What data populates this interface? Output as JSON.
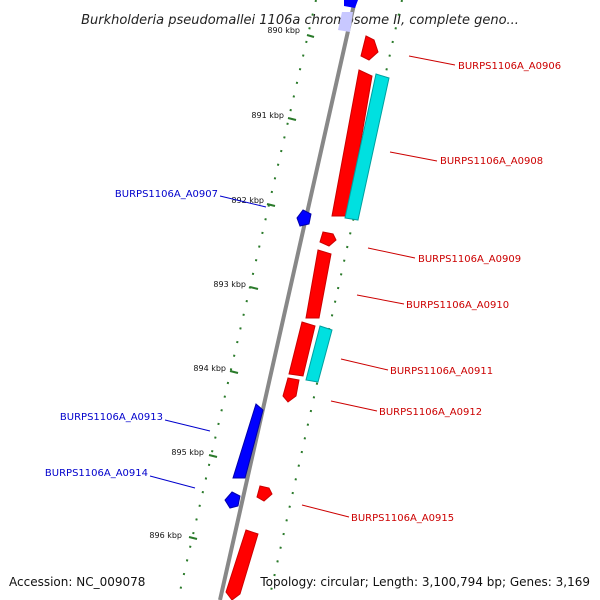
{
  "title": "Burkholderia pseudomallei 1106a chromosome II, complete geno...",
  "footer": {
    "accession": "Accession: NC_009078",
    "stats": "Topology: circular; Length: 3,100,794 bp; Genes: 3,169"
  },
  "colors": {
    "reverse_gene": "#0000ff",
    "forward_gene": "#ff0000",
    "forward_aux": "#00e0e0",
    "backbone": "#888888",
    "tick": "#2a7a2a",
    "label_forward": "#cc0000",
    "label_reverse": "#0000cc"
  },
  "ticks": [
    {
      "label": "890 kbp"
    },
    {
      "label": "891 kbp"
    },
    {
      "label": "892 kbp"
    },
    {
      "label": "893 kbp"
    },
    {
      "label": "894 kbp"
    },
    {
      "label": "895 kbp"
    },
    {
      "label": "896 kbp"
    }
  ],
  "genes": [
    {
      "label": "BURPS1106A_A0906",
      "strand": "forward"
    },
    {
      "label": "BURPS1106A_A0907",
      "strand": "reverse"
    },
    {
      "label": "BURPS1106A_A0908",
      "strand": "forward"
    },
    {
      "label": "BURPS1106A_A0909",
      "strand": "forward"
    },
    {
      "label": "BURPS1106A_A0910",
      "strand": "forward"
    },
    {
      "label": "BURPS1106A_A0911",
      "strand": "forward"
    },
    {
      "label": "BURPS1106A_A0912",
      "strand": "forward"
    },
    {
      "label": "BURPS1106A_A0913",
      "strand": "reverse"
    },
    {
      "label": "BURPS1106A_A0914",
      "strand": "reverse"
    },
    {
      "label": "BURPS1106A_A0915",
      "strand": "forward"
    }
  ]
}
